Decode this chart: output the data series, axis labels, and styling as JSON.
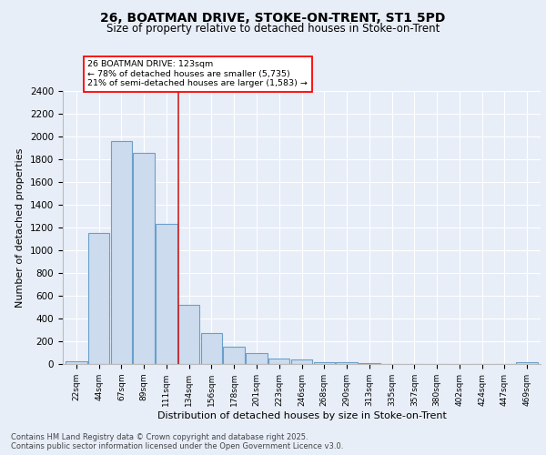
{
  "title1": "26, BOATMAN DRIVE, STOKE-ON-TRENT, ST1 5PD",
  "title2": "Size of property relative to detached houses in Stoke-on-Trent",
  "xlabel": "Distribution of detached houses by size in Stoke-on-Trent",
  "ylabel": "Number of detached properties",
  "categories": [
    "22sqm",
    "44sqm",
    "67sqm",
    "89sqm",
    "111sqm",
    "134sqm",
    "156sqm",
    "178sqm",
    "201sqm",
    "223sqm",
    "246sqm",
    "268sqm",
    "290sqm",
    "313sqm",
    "335sqm",
    "357sqm",
    "380sqm",
    "402sqm",
    "424sqm",
    "447sqm",
    "469sqm"
  ],
  "values": [
    25,
    1155,
    1960,
    1855,
    1230,
    520,
    275,
    150,
    93,
    45,
    43,
    20,
    14,
    8,
    4,
    3,
    2,
    2,
    1,
    1,
    15
  ],
  "bar_color": "#ccdcee",
  "bar_edge_color": "#6a9fca",
  "annotation_text": "26 BOATMAN DRIVE: 123sqm\n← 78% of detached houses are smaller (5,735)\n21% of semi-detached houses are larger (1,583) →",
  "annotation_box_color": "white",
  "annotation_box_edge": "red",
  "vline_color": "#cc2222",
  "ylim": [
    0,
    2400
  ],
  "yticks": [
    0,
    200,
    400,
    600,
    800,
    1000,
    1200,
    1400,
    1600,
    1800,
    2000,
    2200,
    2400
  ],
  "bg_color": "#e8eef8",
  "plot_bg": "#e8eef8",
  "grid_color": "#ffffff",
  "footer1": "Contains HM Land Registry data © Crown copyright and database right 2025.",
  "footer2": "Contains public sector information licensed under the Open Government Licence v3.0."
}
